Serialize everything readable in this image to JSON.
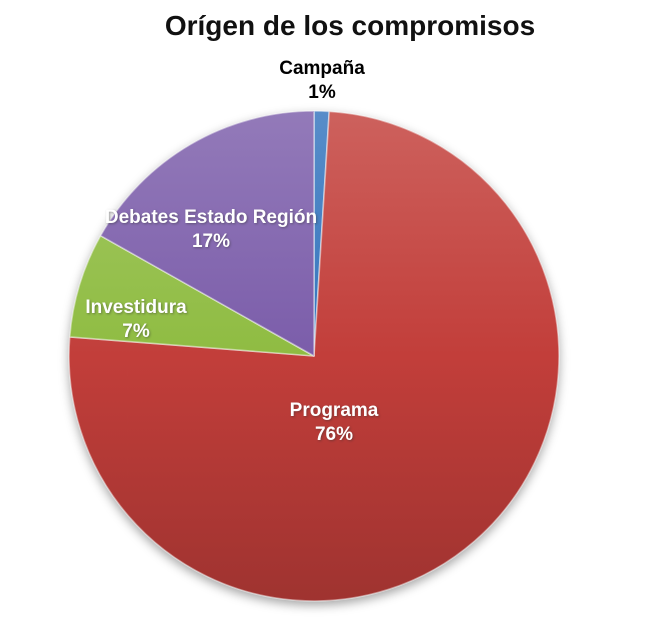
{
  "title": "Orígen de los compromisos",
  "background_color": "#FFFFFF",
  "chart_data": {
    "type": "pie",
    "title": "Orígen de los compromisos",
    "legend": "none",
    "start_angle_deg": 0,
    "direction": "clockwise",
    "label_format": "category + percent",
    "background": "#FFFFFF",
    "title_color": "#111111",
    "inside_label_color": "#FFFFFF",
    "outside_label_color": "#000000",
    "slices": [
      {
        "label": "Campaña",
        "value_pct": 1,
        "pct_label": "1%",
        "color": "#3374BD",
        "label_placement": "outside-top"
      },
      {
        "label": "Programa",
        "value_pct": 76,
        "pct_label": "76%",
        "color": "#C23E3A",
        "label_placement": "inside"
      },
      {
        "label": "Investidura",
        "value_pct": 7,
        "pct_label": "7%",
        "color": "#8FBC42",
        "label_placement": "inside"
      },
      {
        "label": "Debates Estado Región",
        "value_pct": 17,
        "pct_label": "17%",
        "color": "#7B5DAA",
        "label_placement": "inside"
      }
    ]
  }
}
